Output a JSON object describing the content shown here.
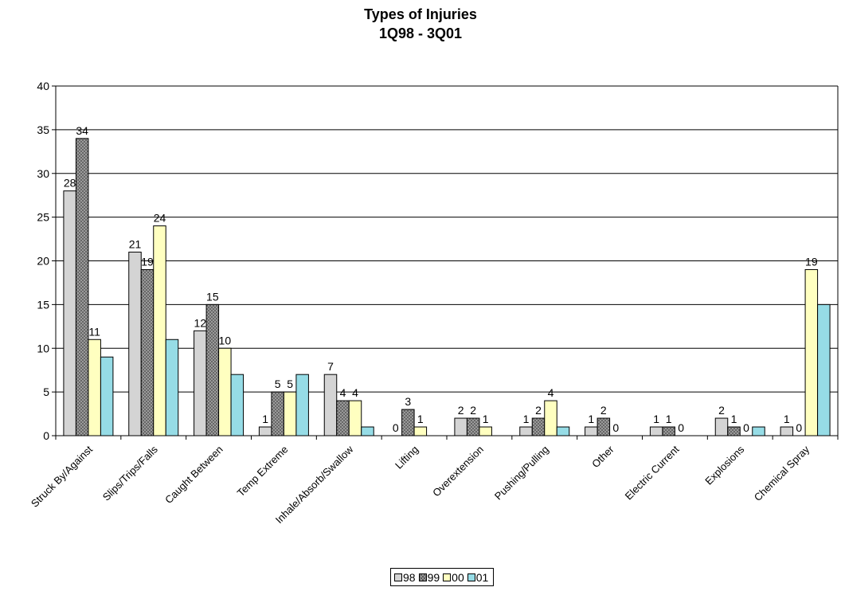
{
  "chart_data": {
    "type": "bar",
    "title": "Types of Injuries",
    "subtitle": "1Q98 - 3Q01",
    "xlabel": "",
    "ylabel": "",
    "ylim": [
      0,
      40
    ],
    "yticks": [
      "0",
      "5",
      "10",
      "15",
      "20",
      "25",
      "30",
      "35",
      "40"
    ],
    "grid": true,
    "legend_position": "bottom",
    "categories": [
      "Struck By/Against",
      "Slips/Trips/Falls",
      "Caught Between",
      "Temp Extreme",
      "Inhale/Absorb/Swallow",
      "Lifting",
      "Overextension",
      "Pushing/Pulling",
      "Other",
      "Electric Current",
      "Explosions",
      "Chemical Spray"
    ],
    "series": [
      {
        "name": "98",
        "color": "#d4d4d4",
        "pattern": "solid",
        "values": [
          28,
          21,
          12,
          1,
          7,
          0,
          2,
          1,
          1,
          1,
          2,
          1
        ],
        "labels": [
          "28",
          "21",
          "12",
          "1",
          "7",
          "0",
          "2",
          "1",
          "1",
          "1",
          "2",
          "1"
        ]
      },
      {
        "name": "99",
        "color": "#a8a8a8",
        "pattern": "crosshatch",
        "values": [
          34,
          19,
          15,
          5,
          4,
          3,
          2,
          2,
          2,
          1,
          1,
          0
        ],
        "labels": [
          "34",
          "19",
          "15",
          "5",
          "4",
          "3",
          "2",
          "2",
          "2",
          "1",
          "1",
          "0"
        ]
      },
      {
        "name": "00",
        "color": "#ffffc0",
        "pattern": "solid",
        "values": [
          11,
          24,
          10,
          5,
          4,
          1,
          1,
          4,
          0,
          0,
          0,
          19
        ],
        "labels": [
          "11",
          "24",
          "10",
          "5",
          "4",
          "1",
          "1",
          "4",
          "0",
          "0",
          "0",
          "19"
        ]
      },
      {
        "name": "01",
        "color": "#96dce6",
        "pattern": "solid",
        "values": [
          9,
          11,
          7,
          7,
          1,
          0,
          0,
          1,
          0,
          0,
          1,
          15
        ],
        "labels": [
          "",
          "",
          "",
          "",
          "",
          "",
          "",
          "",
          "",
          "",
          "",
          ""
        ]
      }
    ]
  }
}
